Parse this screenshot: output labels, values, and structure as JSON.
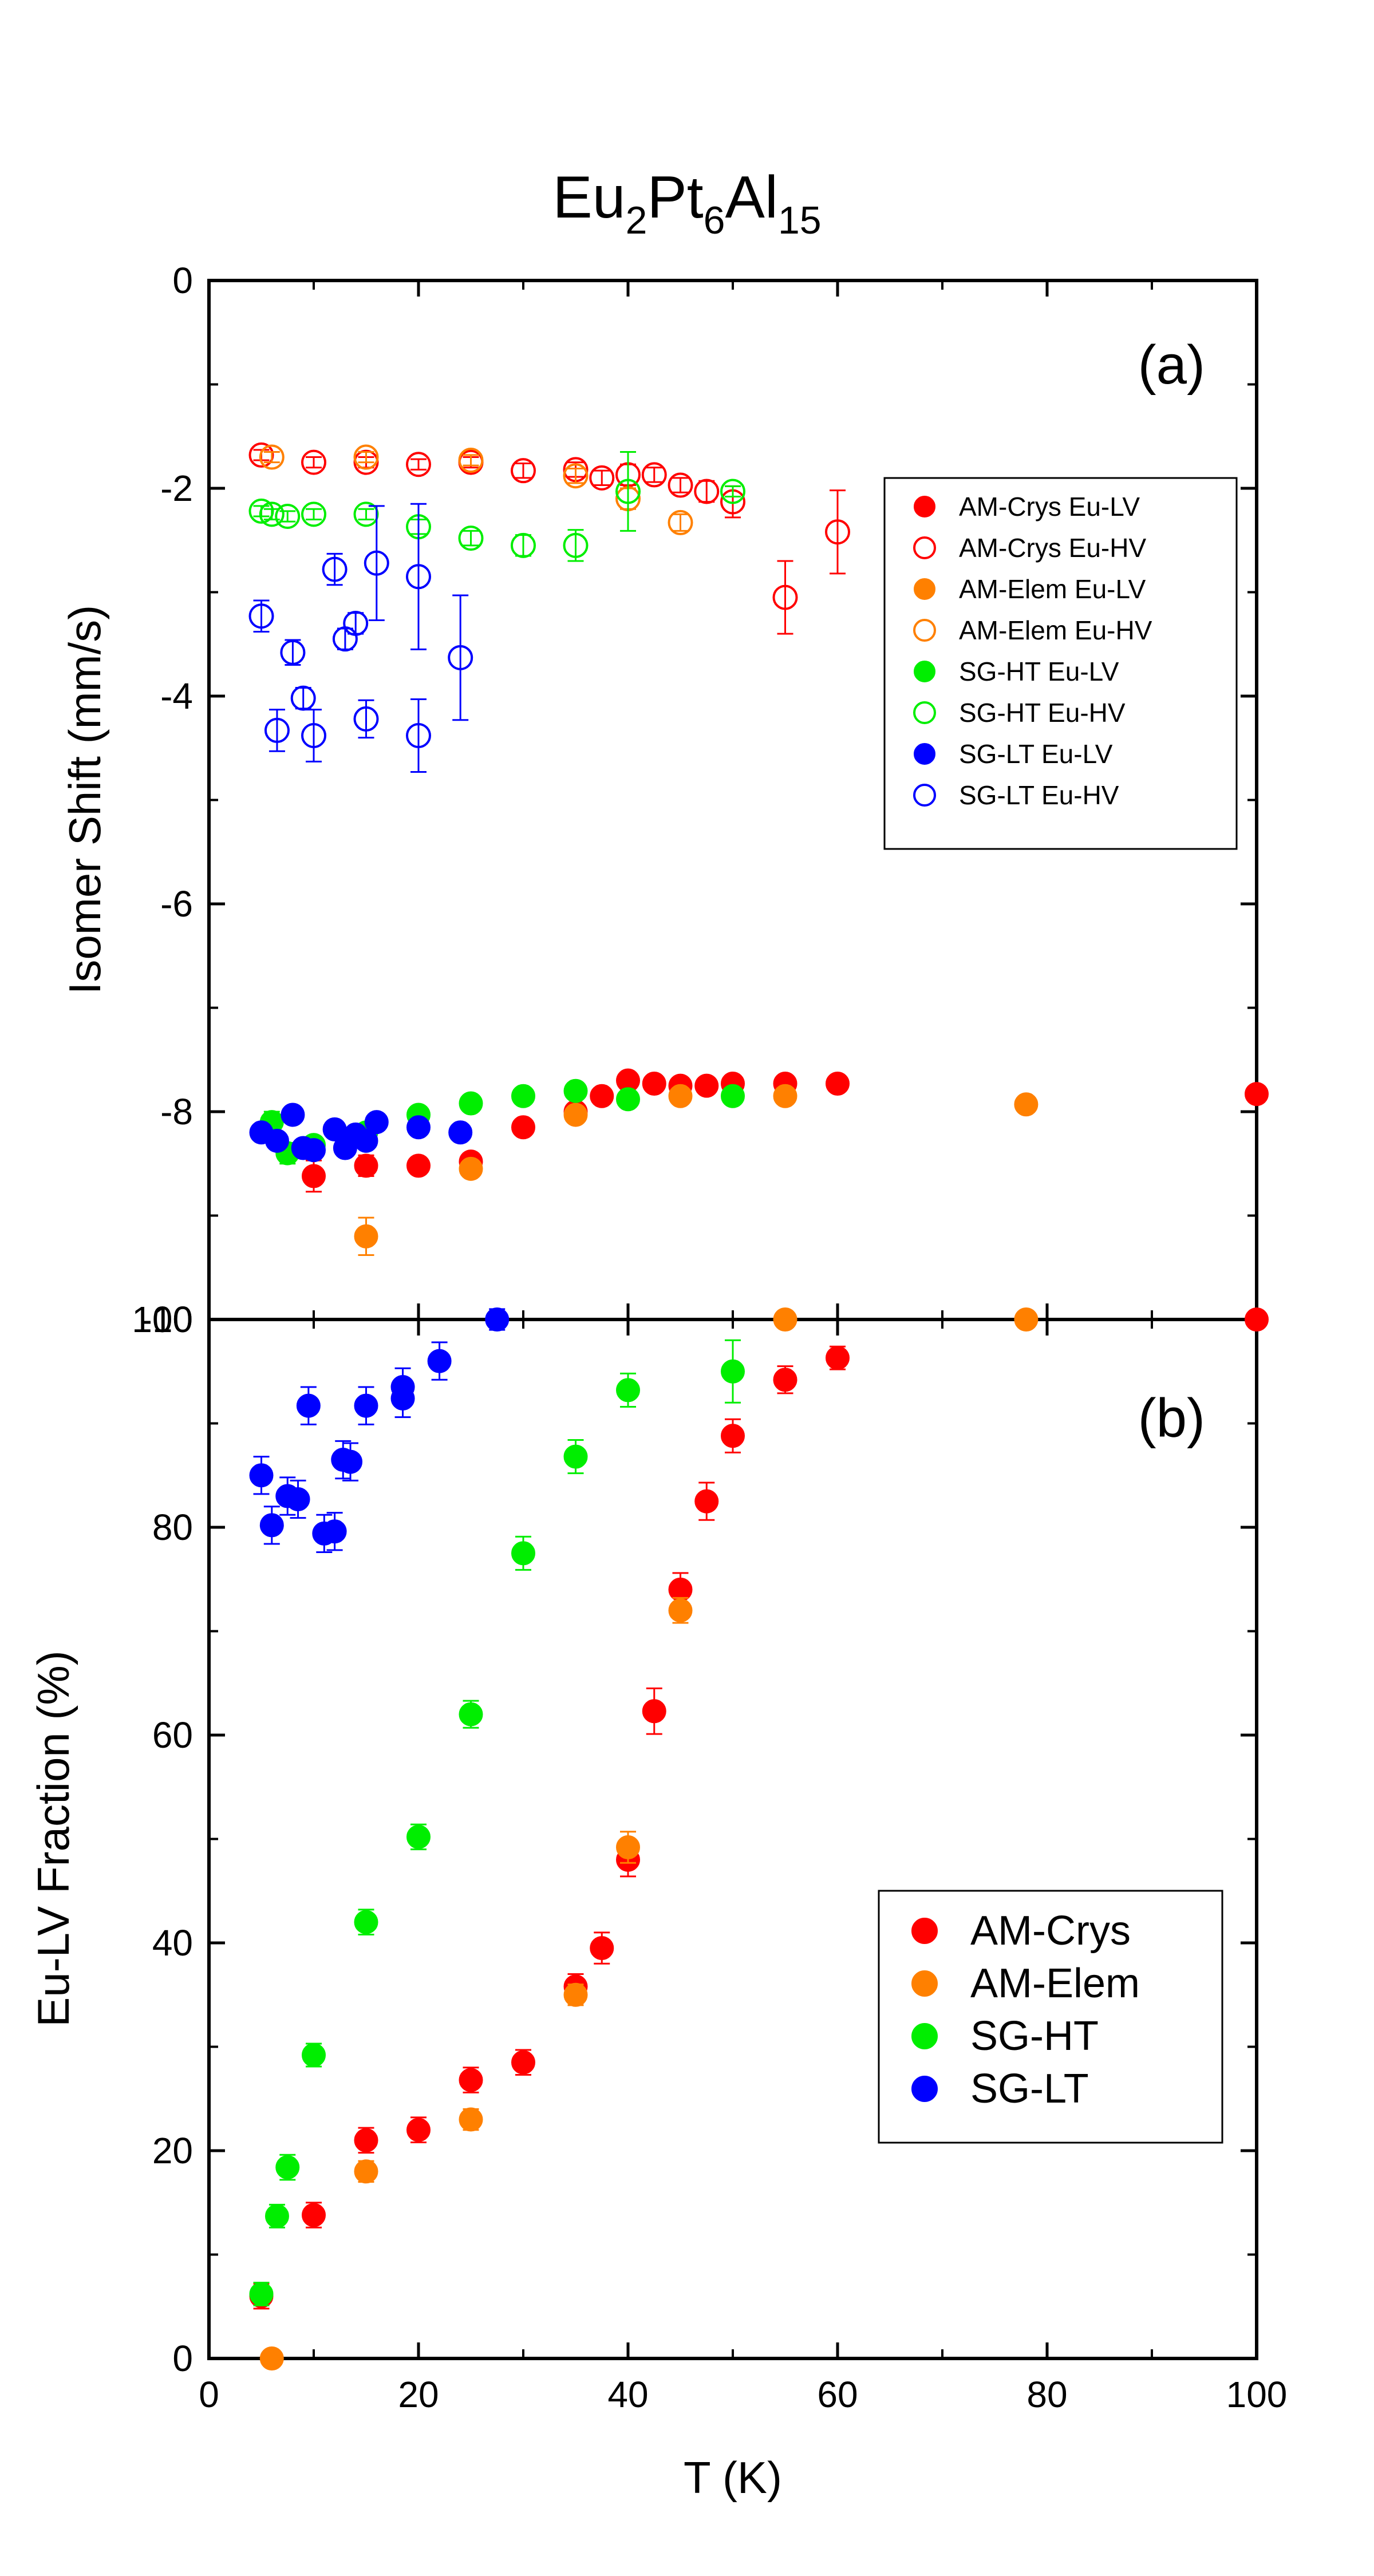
{
  "title": {
    "parts": [
      "Eu",
      "2",
      "Pt",
      "6",
      "Al",
      "15"
    ]
  },
  "chart_data": [
    {
      "panel": "(a)",
      "type": "scatter",
      "title": "",
      "xlabel": "",
      "ylabel": "Isomer Shift (mm/s)",
      "xlim": [
        0,
        100
      ],
      "ylim": [
        -10,
        0
      ],
      "x_ticks": [],
      "y_ticks": [
        0,
        -2,
        -4,
        -6,
        -8,
        -10
      ],
      "y_tick_labels": [
        "0",
        "-2",
        "-4",
        "-6",
        "-8",
        "-10"
      ],
      "legend_position": "right",
      "series": [
        {
          "name": "AM-Crys Eu-LV",
          "color": "#ff0000",
          "filled": true,
          "x": [
            10,
            15,
            20,
            25,
            30,
            35,
            37.5,
            40,
            42.5,
            45,
            47.5,
            50,
            55,
            60,
            100
          ],
          "y": [
            -8.62,
            -8.52,
            -8.52,
            -8.48,
            -8.15,
            -8.0,
            -7.85,
            -7.7,
            -7.73,
            -7.75,
            -7.75,
            -7.73,
            -7.73,
            -7.73,
            -7.83
          ],
          "err": [
            0.15,
            0.1,
            0.08,
            0.08,
            0.07,
            0.07,
            0.06,
            0.05,
            0.05,
            0.05,
            0.05,
            0.05,
            0.05,
            0.05,
            0.05
          ]
        },
        {
          "name": "AM-Crys Eu-HV",
          "color": "#ff0000",
          "filled": false,
          "x": [
            5,
            10,
            15,
            20,
            25,
            30,
            35,
            37.5,
            40,
            42.5,
            45,
            47.5,
            50,
            55,
            60
          ],
          "y": [
            -1.68,
            -1.75,
            -1.75,
            -1.77,
            -1.75,
            -1.83,
            -1.82,
            -1.9,
            -1.87,
            -1.87,
            -1.97,
            -2.03,
            -2.13,
            -3.05,
            -2.42
          ],
          "err": [
            0.05,
            0.05,
            0.05,
            0.05,
            0.05,
            0.07,
            0.07,
            0.07,
            0.1,
            0.07,
            0.07,
            0.1,
            0.15,
            0.35,
            0.4
          ]
        },
        {
          "name": "AM-Elem Eu-LV",
          "color": "#ff8000",
          "filled": true,
          "x": [
            15,
            25,
            35,
            45,
            55,
            78
          ],
          "y": [
            -9.2,
            -8.55,
            -8.03,
            -7.85,
            -7.85,
            -7.93
          ],
          "err": [
            0.18,
            0.07,
            0.07,
            0.06,
            0.05,
            0.05
          ]
        },
        {
          "name": "AM-Elem Eu-HV",
          "color": "#ff8000",
          "filled": false,
          "x": [
            6,
            15,
            25,
            35,
            40,
            45
          ],
          "y": [
            -1.7,
            -1.7,
            -1.73,
            -1.88,
            -2.1,
            -2.33
          ],
          "err": [
            0.05,
            0.05,
            0.05,
            0.07,
            0.1,
            0.08
          ]
        },
        {
          "name": "SG-HT Eu-LV",
          "color": "#00ee00",
          "filled": true,
          "x": [
            6,
            7.5,
            10,
            15,
            20,
            25,
            30,
            35,
            40,
            50
          ],
          "y": [
            -8.1,
            -8.4,
            -8.32,
            -8.2,
            -8.03,
            -7.92,
            -7.85,
            -7.8,
            -7.88,
            -7.85
          ],
          "err": [
            0.1,
            0.1,
            0.08,
            0.07,
            0.06,
            0.05,
            0.05,
            0.05,
            0.05,
            0.05
          ]
        },
        {
          "name": "SG-HT Eu-HV",
          "color": "#00ee00",
          "filled": false,
          "x": [
            5,
            6,
            7.5,
            10,
            15,
            20,
            25,
            30,
            35,
            40,
            50
          ],
          "y": [
            -2.22,
            -2.25,
            -2.27,
            -2.25,
            -2.25,
            -2.37,
            -2.48,
            -2.55,
            -2.55,
            -2.03,
            -2.03
          ],
          "err": [
            0.05,
            0.05,
            0.05,
            0.05,
            0.05,
            0.07,
            0.07,
            0.1,
            0.15,
            0.38,
            0.05
          ]
        },
        {
          "name": "SG-LT Eu-LV",
          "color": "#0000ff",
          "filled": true,
          "x": [
            5,
            6.5,
            8,
            9,
            10,
            12,
            13,
            14,
            15,
            16,
            20,
            24
          ],
          "y": [
            -8.2,
            -8.28,
            -8.03,
            -8.35,
            -8.37,
            -8.17,
            -8.35,
            -8.22,
            -8.28,
            -8.1,
            -8.15,
            -8.2
          ],
          "err": [
            0.06,
            0.06,
            0.06,
            0.06,
            0.06,
            0.06,
            0.06,
            0.06,
            0.06,
            0.06,
            0.06,
            0.06
          ]
        },
        {
          "name": "SG-LT Eu-HV",
          "color": "#0000ff",
          "filled": false,
          "x": [
            5,
            6.5,
            8,
            9,
            10,
            12,
            13,
            14,
            15,
            16,
            20,
            20,
            24
          ],
          "y": [
            -3.23,
            -4.33,
            -3.58,
            -4.02,
            -4.38,
            -2.78,
            -3.45,
            -3.3,
            -4.22,
            -2.72,
            -2.85,
            -4.38,
            -3.63
          ],
          "err": [
            0.15,
            0.2,
            0.12,
            0.1,
            0.25,
            0.15,
            0.1,
            0.1,
            0.18,
            0.55,
            0.7,
            0.35,
            0.6
          ]
        }
      ]
    },
    {
      "panel": "(b)",
      "type": "scatter",
      "title": "",
      "xlabel": "T (K)",
      "ylabel": "Eu-LV Fraction (%)",
      "xlim": [
        0,
        100
      ],
      "ylim": [
        0,
        100
      ],
      "x_ticks": [
        0,
        20,
        40,
        60,
        80,
        100
      ],
      "x_tick_labels": [
        "0",
        "20",
        "40",
        "60",
        "80",
        "100"
      ],
      "y_ticks": [
        0,
        20,
        40,
        60,
        80,
        100
      ],
      "y_tick_labels": [
        "0",
        "20",
        "40",
        "60",
        "80",
        "100"
      ],
      "legend_position": "bottom-right",
      "series": [
        {
          "name": "AM-Crys",
          "color": "#ff0000",
          "filled": true,
          "x": [
            5,
            10,
            15,
            20,
            25,
            30,
            35,
            37.5,
            40,
            42.5,
            45,
            47.5,
            50,
            55,
            60,
            100
          ],
          "y": [
            6,
            13.8,
            21,
            22,
            26.8,
            28.5,
            35.8,
            39.5,
            48,
            62.3,
            74,
            82.5,
            88.8,
            94.2,
            96.3,
            100
          ],
          "err": [
            1.2,
            1.2,
            1.2,
            1.2,
            1.2,
            1.2,
            1.2,
            1.5,
            1.6,
            2.2,
            1.6,
            1.8,
            1.6,
            1.3,
            1.1,
            0.5
          ]
        },
        {
          "name": "AM-Elem",
          "color": "#ff8000",
          "filled": true,
          "x": [
            6,
            15,
            25,
            35,
            40,
            45,
            55,
            78
          ],
          "y": [
            0,
            18,
            23,
            35,
            49.2,
            72,
            100,
            100
          ],
          "err": [
            0.5,
            1.0,
            1.0,
            1.0,
            1.5,
            1.2,
            0.5,
            0.5
          ]
        },
        {
          "name": "SG-HT",
          "color": "#00ee00",
          "filled": true,
          "x": [
            5,
            6.5,
            7.5,
            10,
            15,
            20,
            25,
            30,
            35,
            40,
            50
          ],
          "y": [
            6.2,
            13.7,
            18.4,
            29.2,
            42,
            50.2,
            62,
            77.5,
            86.8,
            93.2,
            95
          ],
          "err": [
            1.1,
            1.1,
            1.2,
            1.1,
            1.2,
            1.2,
            1.3,
            1.6,
            1.6,
            1.6,
            3.0
          ]
        },
        {
          "name": "SG-LT",
          "color": "#0000ff",
          "filled": true,
          "x": [
            5,
            6,
            7.5,
            8.5,
            9.5,
            11,
            12,
            12.8,
            13.5,
            15,
            18.5,
            18.5,
            22,
            27.5
          ],
          "y": [
            85,
            80.2,
            83,
            82.7,
            91.7,
            79.4,
            79.6,
            86.5,
            86.3,
            91.7,
            93.5,
            92.4,
            96,
            100
          ],
          "err": [
            1.8,
            1.8,
            1.8,
            1.8,
            1.8,
            1.8,
            1.8,
            1.8,
            1.8,
            1.8,
            1.8,
            1.8,
            1.8,
            1.0
          ]
        }
      ]
    }
  ]
}
